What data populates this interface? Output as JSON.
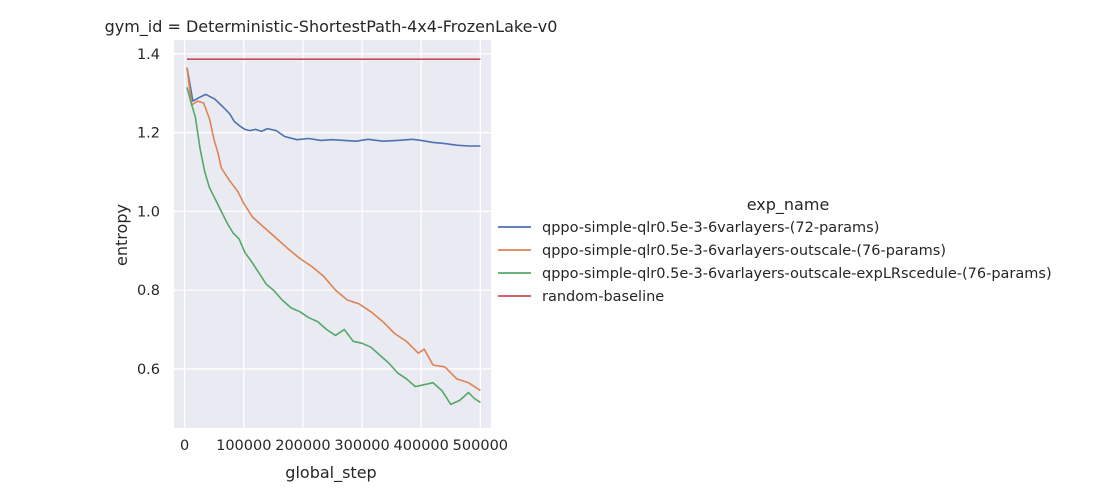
{
  "chart_data": {
    "type": "line",
    "title": "gym_id = Deterministic-ShortestPath-4x4-FrozenLake-v0",
    "xlabel": "global_step",
    "ylabel": "entropy",
    "xlim": [
      -18000,
      518000
    ],
    "ylim": [
      0.45,
      1.435
    ],
    "xticks": [
      0,
      100000,
      200000,
      300000,
      400000,
      500000
    ],
    "xtick_labels": [
      "0",
      "100000",
      "200000",
      "300000",
      "400000",
      "500000"
    ],
    "yticks": [
      0.6,
      0.8,
      1.0,
      1.2,
      1.4
    ],
    "ytick_labels": [
      "0.6",
      "0.8",
      "1.0",
      "1.2",
      "1.4"
    ],
    "grid": true,
    "background": "#eaeaf2",
    "legend": {
      "title": "exp_name",
      "placement": "right"
    },
    "series": [
      {
        "name": "qppo-simple-qlr0.5e-3-6varlayers-(72-params)",
        "color": "#4c72b0",
        "x": [
          4000,
          14000,
          26000,
          36000,
          51000,
          65000,
          76000,
          84000,
          95000,
          102000,
          110000,
          120000,
          130000,
          140000,
          155000,
          169000,
          190000,
          210000,
          230000,
          250000,
          270000,
          290000,
          310000,
          335000,
          360000,
          385000,
          400000,
          420000,
          440000,
          460000,
          480000,
          500000
        ],
        "y": [
          1.365,
          1.28,
          1.29,
          1.297,
          1.285,
          1.265,
          1.248,
          1.228,
          1.215,
          1.208,
          1.205,
          1.208,
          1.203,
          1.21,
          1.205,
          1.19,
          1.182,
          1.185,
          1.18,
          1.182,
          1.18,
          1.178,
          1.183,
          1.178,
          1.18,
          1.183,
          1.18,
          1.175,
          1.172,
          1.168,
          1.166,
          1.166
        ]
      },
      {
        "name": "qppo-simple-qlr0.5e-3-6varlayers-outscale-(76-params)",
        "color": "#dd8452",
        "x": [
          4000,
          12000,
          22000,
          32000,
          42000,
          50000,
          56000,
          62000,
          75000,
          90000,
          100000,
          115000,
          130000,
          145000,
          160000,
          175000,
          195000,
          215000,
          235000,
          255000,
          275000,
          295000,
          315000,
          335000,
          355000,
          375000,
          395000,
          405000,
          420000,
          440000,
          460000,
          480000,
          500000
        ],
        "y": [
          1.365,
          1.27,
          1.28,
          1.275,
          1.235,
          1.18,
          1.15,
          1.11,
          1.08,
          1.05,
          1.02,
          0.985,
          0.965,
          0.945,
          0.925,
          0.905,
          0.88,
          0.86,
          0.835,
          0.8,
          0.775,
          0.765,
          0.745,
          0.72,
          0.69,
          0.67,
          0.64,
          0.65,
          0.61,
          0.605,
          0.575,
          0.565,
          0.545
        ]
      },
      {
        "name": "qppo-simple-qlr0.5e-3-6varlayers-outscale-expLRscedule-(76-params)",
        "color": "#55a868",
        "x": [
          4000,
          10000,
          18000,
          26000,
          34000,
          42000,
          52000,
          62000,
          72000,
          82000,
          92000,
          102000,
          112000,
          125000,
          138000,
          150000,
          165000,
          180000,
          195000,
          210000,
          225000,
          240000,
          255000,
          270000,
          285000,
          300000,
          315000,
          330000,
          345000,
          360000,
          375000,
          390000,
          405000,
          420000,
          435000,
          450000,
          465000,
          480000,
          490000,
          500000
        ],
        "y": [
          1.315,
          1.28,
          1.24,
          1.16,
          1.1,
          1.06,
          1.03,
          1.0,
          0.97,
          0.945,
          0.93,
          0.895,
          0.875,
          0.845,
          0.815,
          0.8,
          0.775,
          0.755,
          0.745,
          0.73,
          0.72,
          0.7,
          0.685,
          0.7,
          0.67,
          0.665,
          0.655,
          0.635,
          0.615,
          0.59,
          0.575,
          0.555,
          0.56,
          0.565,
          0.545,
          0.51,
          0.52,
          0.54,
          0.525,
          0.515
        ]
      },
      {
        "name": "random-baseline",
        "color": "#c44e52",
        "x": [
          4000,
          500000
        ],
        "y": [
          1.3863,
          1.3863
        ]
      }
    ]
  }
}
